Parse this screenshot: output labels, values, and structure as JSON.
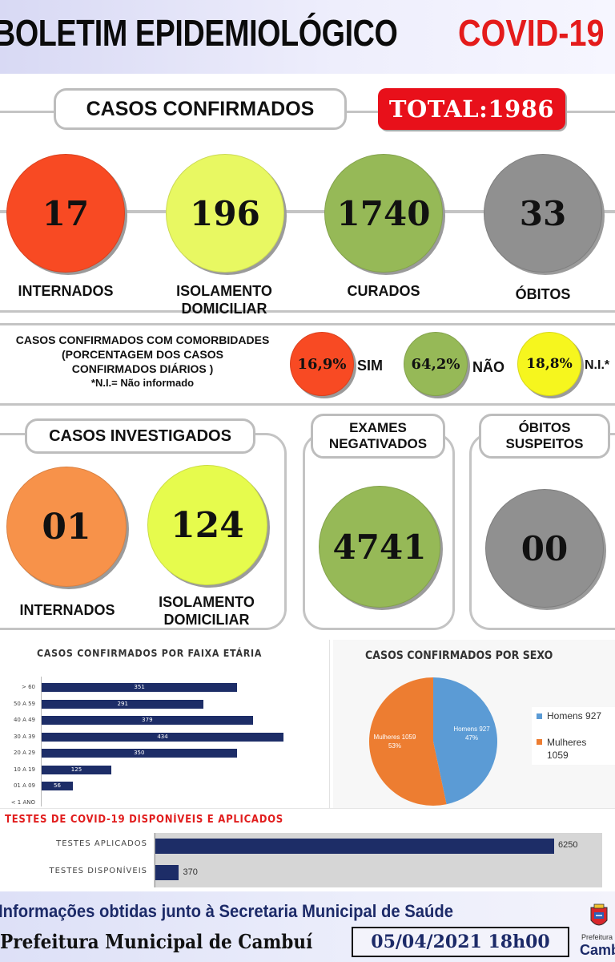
{
  "header": {
    "title": "BOLETIM EPIDEMIOLÓGICO",
    "covid": "COVID-19"
  },
  "confirmed": {
    "label": "CASOS CONFIRMADOS",
    "total": "TOTAL:1986",
    "items": [
      {
        "value": "17",
        "label": "INTERNADOS",
        "color": "#f84a23"
      },
      {
        "value": "196",
        "label": "ISOLAMENTO DOMICILIAR",
        "color": "#e8f862"
      },
      {
        "value": "1740",
        "label": "CURADOS",
        "color": "#96b957"
      },
      {
        "value": "33",
        "label": "ÓBITOS",
        "color": "#909090"
      }
    ]
  },
  "comorbid": {
    "line1": "CASOS CONFIRMADOS COM COMORBIDADES",
    "line2": "(PORCENTAGEM DOS CASOS",
    "line3": "CONFIRMADOS DIÁRIOS )",
    "note": "*N.I.= Não informado",
    "items": [
      {
        "value": "16,9%",
        "label": "SIM",
        "color": "#f84a23"
      },
      {
        "value": "64,2%",
        "label": "NÃO",
        "color": "#96b957"
      },
      {
        "value": "18,8%",
        "label": "N.I.*",
        "color": "#f6f61e"
      }
    ]
  },
  "investigated": {
    "label": "CASOS INVESTIGADOS",
    "items": [
      {
        "value": "01",
        "label": "INTERNADOS",
        "color": "#f7924a"
      },
      {
        "value": "124",
        "label": "ISOLAMENTO DOMICILIAR",
        "color": "#e6fb4d"
      }
    ]
  },
  "negatives": {
    "label1": "EXAMES",
    "label2": "NEGATIVADOS",
    "value": "4741",
    "color": "#96b957"
  },
  "suspect": {
    "label1": "ÓBITOS",
    "label2": "SUSPEITOS",
    "value": "00",
    "color": "#909090"
  },
  "age_chart": {
    "title": "CASOS CONFIRMADOS POR FAIXA ETÁRIA",
    "chart_data": {
      "type": "bar",
      "categories": [
        "> 60",
        "50 A 59",
        "40 A 49",
        "30 A 39",
        "20 A 29",
        "10 A 19",
        "01 A 09",
        "< 1 ANO"
      ],
      "values": [
        351,
        291,
        379,
        434,
        350,
        125,
        56,
        0
      ],
      "color": "#1d2d67"
    }
  },
  "sex_chart": {
    "title": "CASOS CONFIRMADOS POR SEXO",
    "chart_data": {
      "type": "pie",
      "slices": [
        {
          "name": "Homens",
          "value": 927,
          "label": "Homens 927",
          "percent": "47%",
          "color": "#5b9bd5"
        },
        {
          "name": "Mulheres",
          "value": 1059,
          "label": "Mulheres 1059",
          "percent": "53%",
          "color": "#ed7d31"
        }
      ],
      "legend": [
        {
          "text": "Homens 927",
          "color": "#5b9bd5"
        },
        {
          "text1": "Mulheres",
          "text2": "1059",
          "color": "#ed7d31"
        }
      ]
    }
  },
  "tests_chart": {
    "title": "TESTES DE COVID-19 DISPONÍVEIS E APLICADOS",
    "chart_data": {
      "type": "bar",
      "categories": [
        "TESTES APLICADOS",
        "TESTES DISPONÍVEIS"
      ],
      "values": [
        6250,
        370
      ],
      "color": "#1d2d67"
    }
  },
  "footer": {
    "line1": "Informações obtidas junto à Secretaria Municipal de Saúde",
    "line2": "Prefeitura Municipal de Cambuí",
    "date": "05/04/2021 18h00",
    "logo1": "Prefeitura",
    "logo2": "Cambuí"
  }
}
